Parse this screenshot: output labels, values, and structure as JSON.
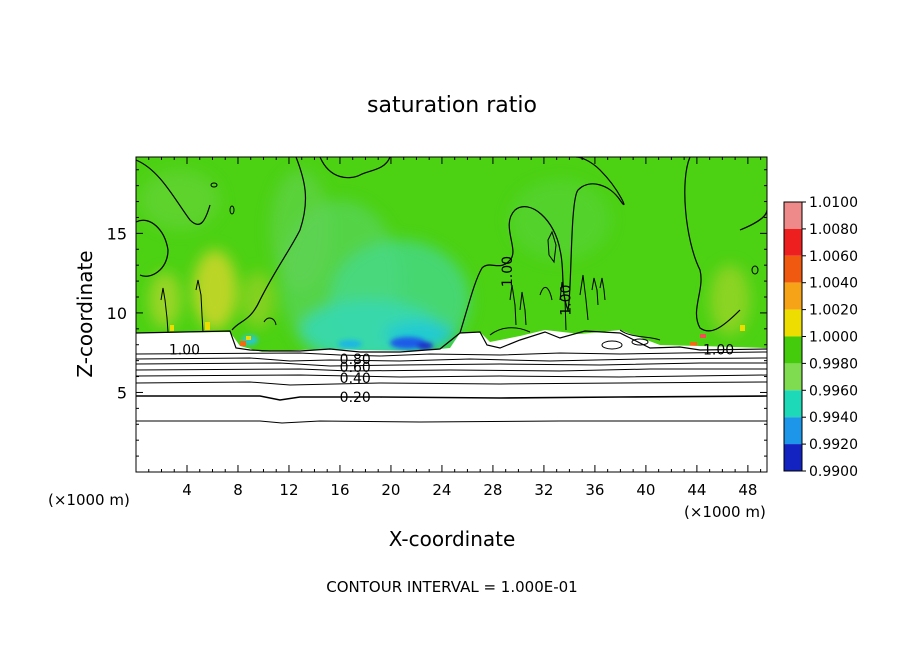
{
  "chart_data": {
    "type": "heatmap",
    "title": "saturation ratio",
    "xlabel": "X-coordinate",
    "ylabel": "Z-coordinate",
    "x_unit_label": "(×1000 m)",
    "x_ticks": [
      4,
      8,
      12,
      16,
      20,
      24,
      28,
      32,
      36,
      40,
      44,
      48
    ],
    "y_ticks": [
      5,
      10,
      15
    ],
    "xlim": [
      0,
      49.5
    ],
    "ylim": [
      0,
      19.8
    ],
    "footer": "CONTOUR INTERVAL = 1.000E-01",
    "contour_labels": [
      {
        "text": "1.00",
        "x": 3.8,
        "y": 7.7
      },
      {
        "text": "0.80",
        "x": 17.2,
        "y": 7.1
      },
      {
        "text": "0.60",
        "x": 17.2,
        "y": 6.6
      },
      {
        "text": "0.40",
        "x": 17.2,
        "y": 5.9
      },
      {
        "text": "0.20",
        "x": 17.2,
        "y": 4.7
      },
      {
        "text": "1.00",
        "x": 29.1,
        "y": 12.6,
        "rotate": -90
      },
      {
        "text": "1.00",
        "x": 33.7,
        "y": 10.8,
        "rotate": -90
      },
      {
        "text": "1.00",
        "x": 45.7,
        "y": 7.7
      }
    ],
    "colorbar": {
      "labels": [
        "1.0100",
        "1.0080",
        "1.0060",
        "1.0040",
        "1.0020",
        "1.0000",
        "0.9980",
        "0.9960",
        "0.9940",
        "0.9920",
        "0.9900"
      ],
      "colors": [
        "#ee8a8a",
        "#ee1f1f",
        "#f05a10",
        "#f6a318",
        "#eedd00",
        "#44cc0c",
        "#7fdc50",
        "#1ed9b8",
        "#1d96ea",
        "#1223c2",
        "#5b1098"
      ]
    },
    "field": {
      "background": "#4cd113",
      "warm_patches_color": "#d4d62a",
      "cool_plume_color": "#3fd9a5",
      "low_region_color": "#ffffff"
    }
  }
}
